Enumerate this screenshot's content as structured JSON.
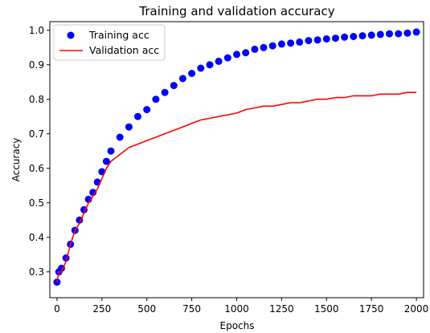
{
  "chart_data": {
    "type": "line",
    "title": "Training and validation accuracy",
    "xlabel": "Epochs",
    "ylabel": "Accuracy",
    "xlim": [
      -40,
      2040
    ],
    "ylim": [
      0.225,
      1.025
    ],
    "xticks": [
      0,
      250,
      500,
      750,
      1000,
      1250,
      1500,
      1750,
      2000
    ],
    "yticks": [
      0.3,
      0.4,
      0.5,
      0.6,
      0.7,
      0.8,
      0.9,
      1.0
    ],
    "ytick_labels": [
      "0.3",
      "0.4",
      "0.5",
      "0.6",
      "0.7",
      "0.8",
      "0.9",
      "1.0"
    ],
    "grid": false,
    "legend_position": "top-left",
    "series": [
      {
        "name": "Training acc",
        "style": "markers",
        "color": "#0000ff",
        "x": [
          0,
          10,
          25,
          50,
          75,
          100,
          125,
          150,
          175,
          200,
          225,
          250,
          275,
          300,
          350,
          400,
          450,
          500,
          550,
          600,
          650,
          700,
          750,
          800,
          850,
          900,
          950,
          1000,
          1050,
          1100,
          1150,
          1200,
          1250,
          1300,
          1350,
          1400,
          1450,
          1500,
          1550,
          1600,
          1650,
          1700,
          1750,
          1800,
          1850,
          1900,
          1950,
          2000
        ],
        "y": [
          0.27,
          0.3,
          0.31,
          0.34,
          0.38,
          0.42,
          0.45,
          0.48,
          0.51,
          0.53,
          0.56,
          0.59,
          0.62,
          0.65,
          0.69,
          0.72,
          0.75,
          0.77,
          0.8,
          0.82,
          0.84,
          0.86,
          0.875,
          0.89,
          0.9,
          0.91,
          0.92,
          0.93,
          0.935,
          0.945,
          0.95,
          0.955,
          0.96,
          0.963,
          0.966,
          0.97,
          0.972,
          0.975,
          0.977,
          0.98,
          0.982,
          0.984,
          0.986,
          0.988,
          0.99,
          0.99,
          0.992,
          0.995
        ]
      },
      {
        "name": "Validation acc",
        "style": "line",
        "color": "#ff0000",
        "x": [
          0,
          10,
          25,
          50,
          75,
          100,
          125,
          150,
          175,
          200,
          225,
          250,
          275,
          300,
          350,
          400,
          450,
          500,
          550,
          600,
          650,
          700,
          750,
          800,
          850,
          900,
          950,
          1000,
          1050,
          1100,
          1150,
          1200,
          1250,
          1300,
          1350,
          1400,
          1450,
          1500,
          1550,
          1600,
          1650,
          1700,
          1750,
          1800,
          1850,
          1900,
          1950,
          2000
        ],
        "y": [
          0.27,
          0.3,
          0.3,
          0.33,
          0.38,
          0.42,
          0.44,
          0.47,
          0.5,
          0.52,
          0.54,
          0.57,
          0.6,
          0.62,
          0.64,
          0.66,
          0.67,
          0.68,
          0.69,
          0.7,
          0.71,
          0.72,
          0.73,
          0.74,
          0.745,
          0.75,
          0.755,
          0.76,
          0.77,
          0.775,
          0.78,
          0.78,
          0.785,
          0.79,
          0.79,
          0.795,
          0.8,
          0.8,
          0.805,
          0.805,
          0.81,
          0.81,
          0.81,
          0.815,
          0.815,
          0.815,
          0.82,
          0.82
        ]
      }
    ]
  }
}
